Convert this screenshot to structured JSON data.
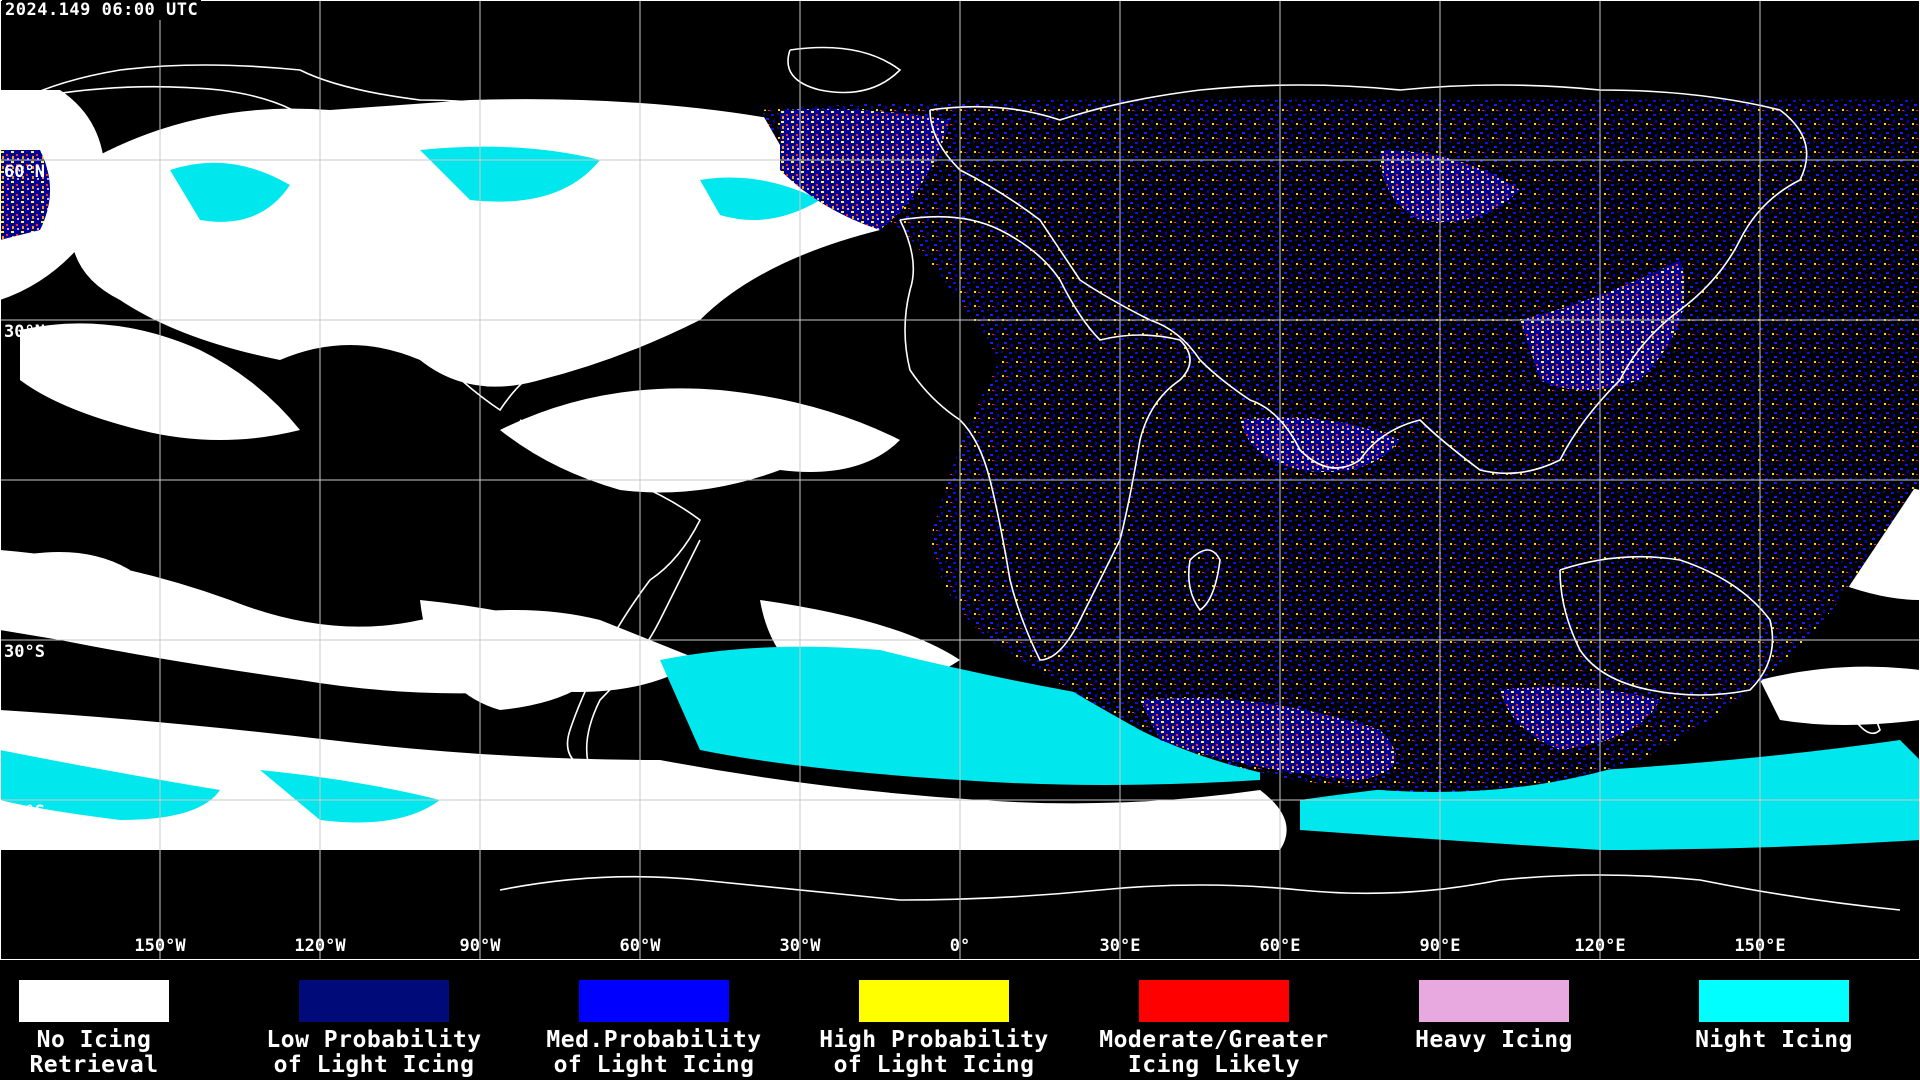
{
  "timestamp": "2024.149 06:00 UTC",
  "longitude_labels": [
    "150°W",
    "120°W",
    "90°W",
    "60°W",
    "30°W",
    "0°",
    "30°E",
    "60°E",
    "90°E",
    "120°E",
    "150°E"
  ],
  "latitude_labels": [
    "60°N",
    "30°N",
    "30°S",
    "60°S"
  ],
  "legend": [
    {
      "label": "No Icing\nRetrieval",
      "color": "#ffffff"
    },
    {
      "label": "Low Probability\nof Light Icing",
      "color": "#000a78"
    },
    {
      "label": "Med.Probability\nof Light Icing",
      "color": "#0000ff"
    },
    {
      "label": "High Probability\nof Light Icing",
      "color": "#ffff00"
    },
    {
      "label": "Moderate/Greater\nIcing Likely",
      "color": "#ff0000"
    },
    {
      "label": "Heavy Icing",
      "color": "#e8a8e0"
    },
    {
      "label": "Night Icing",
      "color": "#00ffff"
    }
  ]
}
